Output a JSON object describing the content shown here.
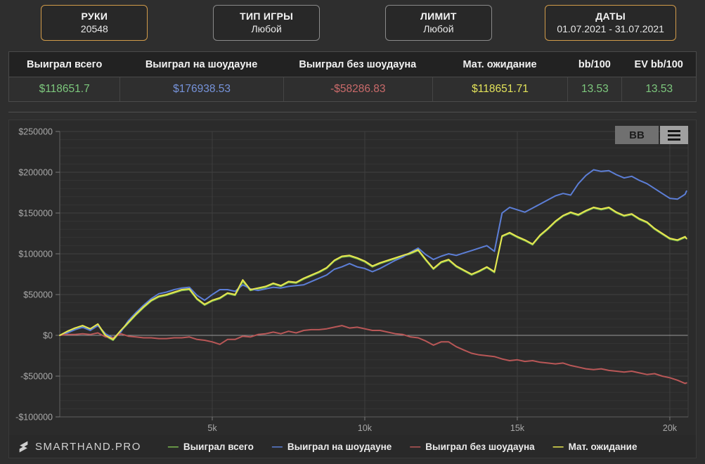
{
  "filters": {
    "items": [
      {
        "label": "РУКИ",
        "value": "20548",
        "active": true
      },
      {
        "label": "ТИП ИГРЫ",
        "value": "Любой",
        "active": false
      },
      {
        "label": "ЛИМИТ",
        "value": "Любой",
        "active": false
      },
      {
        "label": "ДАТЫ",
        "value": "01.07.2021 - 31.07.2021",
        "active": true
      }
    ]
  },
  "stats": {
    "columns": [
      {
        "header": "Выиграл всего",
        "value": "$118651.7",
        "color": "#7dc87d"
      },
      {
        "header": "Выиграл на шоудауне",
        "value": "$176938.53",
        "color": "#7693da"
      },
      {
        "header": "Выиграл без шоудауна",
        "value": "-$58286.83",
        "color": "#c96a6a"
      },
      {
        "header": "Мат. ожидание",
        "value": "$118651.71",
        "color": "#e3e35a"
      },
      {
        "header": "bb/100",
        "value": "13.53",
        "color": "#7dc87d"
      },
      {
        "header": "EV bb/100",
        "value": "13.53",
        "color": "#7dc87d"
      }
    ]
  },
  "chart_controls": {
    "bb_label": "BB",
    "menu_icon": "hamburger-icon"
  },
  "footer": {
    "brand": "SMARTHAND.PRO",
    "legend": [
      {
        "label": "Выиграл всего",
        "color": "#7cb950"
      },
      {
        "label": "Выиграл на шоудауне",
        "color": "#5c7ed6"
      },
      {
        "label": "Выиграл без шоудауна",
        "color": "#b95757"
      },
      {
        "label": "Мат. ожидание",
        "color": "#e8e64f"
      }
    ]
  },
  "chart_data": {
    "type": "line",
    "xlabel": "hands",
    "ylabel": "winnings ($)",
    "x_range": [
      0,
      20600
    ],
    "y_range": [
      -100000,
      250000
    ],
    "grid": true,
    "minor_grid_step": 10000,
    "major_grid_step": 50000,
    "legend_position": "bottom",
    "x_ticks": [
      {
        "v": 5000,
        "label": "5k"
      },
      {
        "v": 10000,
        "label": "10k"
      },
      {
        "v": 15000,
        "label": "15k"
      },
      {
        "v": 20000,
        "label": "20k"
      }
    ],
    "y_ticks": [
      {
        "v": 250000,
        "label": "$250000"
      },
      {
        "v": 200000,
        "label": "$200000"
      },
      {
        "v": 150000,
        "label": "$150000"
      },
      {
        "v": 100000,
        "label": "$100000"
      },
      {
        "v": 50000,
        "label": "$50000"
      },
      {
        "v": 0,
        "label": "$0"
      },
      {
        "v": -50000,
        "label": "-$50000"
      },
      {
        "v": -100000,
        "label": "-$100000"
      }
    ],
    "x": [
      0,
      250,
      500,
      750,
      1000,
      1250,
      1500,
      1750,
      2000,
      2250,
      2500,
      2750,
      3000,
      3250,
      3500,
      3750,
      4000,
      4250,
      4500,
      4750,
      5000,
      5250,
      5500,
      5750,
      6000,
      6250,
      6500,
      6750,
      7000,
      7250,
      7500,
      7750,
      8000,
      8250,
      8500,
      8750,
      9000,
      9250,
      9500,
      9750,
      10000,
      10250,
      10500,
      10750,
      11000,
      11250,
      11500,
      11750,
      12000,
      12250,
      12500,
      12750,
      13000,
      13250,
      13500,
      13750,
      14000,
      14250,
      14500,
      14750,
      15000,
      15250,
      15500,
      15750,
      16000,
      16250,
      16500,
      16750,
      17000,
      17250,
      17500,
      17750,
      18000,
      18250,
      18500,
      18750,
      19000,
      19250,
      19500,
      19750,
      20000,
      20250,
      20500,
      20548
    ],
    "series": [
      {
        "name": "Выиграл всего",
        "color": "#7cb950",
        "final": 118651.7,
        "values": [
          0,
          4000,
          8000,
          11000,
          7000,
          13000,
          -1000,
          -6000,
          5000,
          15000,
          25000,
          34000,
          42000,
          47000,
          49000,
          52000,
          55000,
          56000,
          44000,
          37000,
          42000,
          45000,
          51000,
          49000,
          66000,
          55000,
          57000,
          59000,
          63000,
          60000,
          65000,
          64000,
          69000,
          73000,
          77000,
          82000,
          91000,
          96000,
          97000,
          94000,
          90000,
          84000,
          88000,
          91000,
          94000,
          97000,
          100000,
          104000,
          92000,
          81000,
          89000,
          92000,
          84000,
          79000,
          74000,
          78000,
          83000,
          77000,
          121000,
          125000,
          120000,
          116000,
          111000,
          122000,
          130000,
          139000,
          146000,
          150000,
          147000,
          152000,
          156000,
          154000,
          156000,
          150000,
          146000,
          148000,
          142000,
          138000,
          130000,
          124000,
          118000,
          116000,
          120000,
          118651.7
        ]
      },
      {
        "name": "Выиграл на шоудауне",
        "color": "#5c7ed6",
        "final": 176938.53,
        "values": [
          0,
          3000,
          7000,
          10000,
          6000,
          12000,
          2000,
          -3000,
          4000,
          18000,
          28000,
          37000,
          45000,
          51000,
          53000,
          56000,
          58000,
          59000,
          49000,
          43000,
          50000,
          56000,
          56000,
          54000,
          62000,
          57000,
          55000,
          57000,
          59000,
          58000,
          60000,
          61000,
          62000,
          66000,
          70000,
          74000,
          81000,
          84000,
          88000,
          84000,
          82000,
          78000,
          82000,
          87000,
          92000,
          96000,
          102000,
          107000,
          99000,
          93000,
          97000,
          100000,
          98000,
          101000,
          104000,
          107000,
          110000,
          103000,
          150000,
          157000,
          154000,
          151000,
          156000,
          161000,
          166000,
          171000,
          174000,
          172000,
          186000,
          196000,
          203000,
          201000,
          202000,
          197000,
          193000,
          195000,
          190000,
          186000,
          180000,
          174000,
          168000,
          167000,
          173000,
          176938.53
        ]
      },
      {
        "name": "Выиграл без шоудауна",
        "color": "#b95757",
        "final": -58286.83,
        "values": [
          0,
          1000,
          1000,
          2000,
          1000,
          3000,
          -2000,
          -3000,
          2000,
          -1000,
          -2000,
          -3000,
          -3000,
          -4000,
          -4000,
          -3000,
          -3000,
          -2000,
          -5000,
          -6000,
          -8000,
          -11000,
          -5000,
          -5000,
          -1000,
          -2000,
          1000,
          2000,
          4000,
          2000,
          5000,
          3000,
          6000,
          7000,
          7000,
          8000,
          10000,
          12000,
          9000,
          10000,
          8000,
          6000,
          6000,
          4000,
          2000,
          1000,
          -2000,
          -3000,
          -7000,
          -12000,
          -8000,
          -8000,
          -14000,
          -18000,
          -22000,
          -24000,
          -25000,
          -26000,
          -29000,
          -31000,
          -30000,
          -32000,
          -31000,
          -33000,
          -34000,
          -35000,
          -34000,
          -37000,
          -39000,
          -41000,
          -42000,
          -41000,
          -43000,
          -44000,
          -45000,
          -44000,
          -46000,
          -48000,
          -47000,
          -50000,
          -52000,
          -55000,
          -59000,
          -58286.83
        ]
      },
      {
        "name": "Мат. ожидание",
        "color": "#e8e64f",
        "final": 118651.71,
        "values": [
          0,
          5000,
          9000,
          12000,
          8000,
          14000,
          0,
          -5000,
          6000,
          16000,
          26000,
          35000,
          43000,
          48000,
          50000,
          53000,
          56000,
          57000,
          45000,
          38000,
          43000,
          46000,
          52000,
          50000,
          68000,
          56000,
          58000,
          60000,
          64000,
          61000,
          66000,
          65000,
          70000,
          74000,
          78000,
          83000,
          92000,
          97000,
          98000,
          95000,
          91000,
          85000,
          89000,
          92000,
          95000,
          98000,
          101000,
          105000,
          93000,
          82000,
          90000,
          93000,
          85000,
          80000,
          75000,
          79000,
          84000,
          78000,
          122000,
          126000,
          121000,
          117000,
          112000,
          123000,
          131000,
          140000,
          147000,
          151000,
          148000,
          153000,
          157000,
          155000,
          157000,
          151000,
          147000,
          149000,
          143000,
          139000,
          131000,
          125000,
          119000,
          117000,
          121000,
          118651.71
        ]
      }
    ]
  }
}
